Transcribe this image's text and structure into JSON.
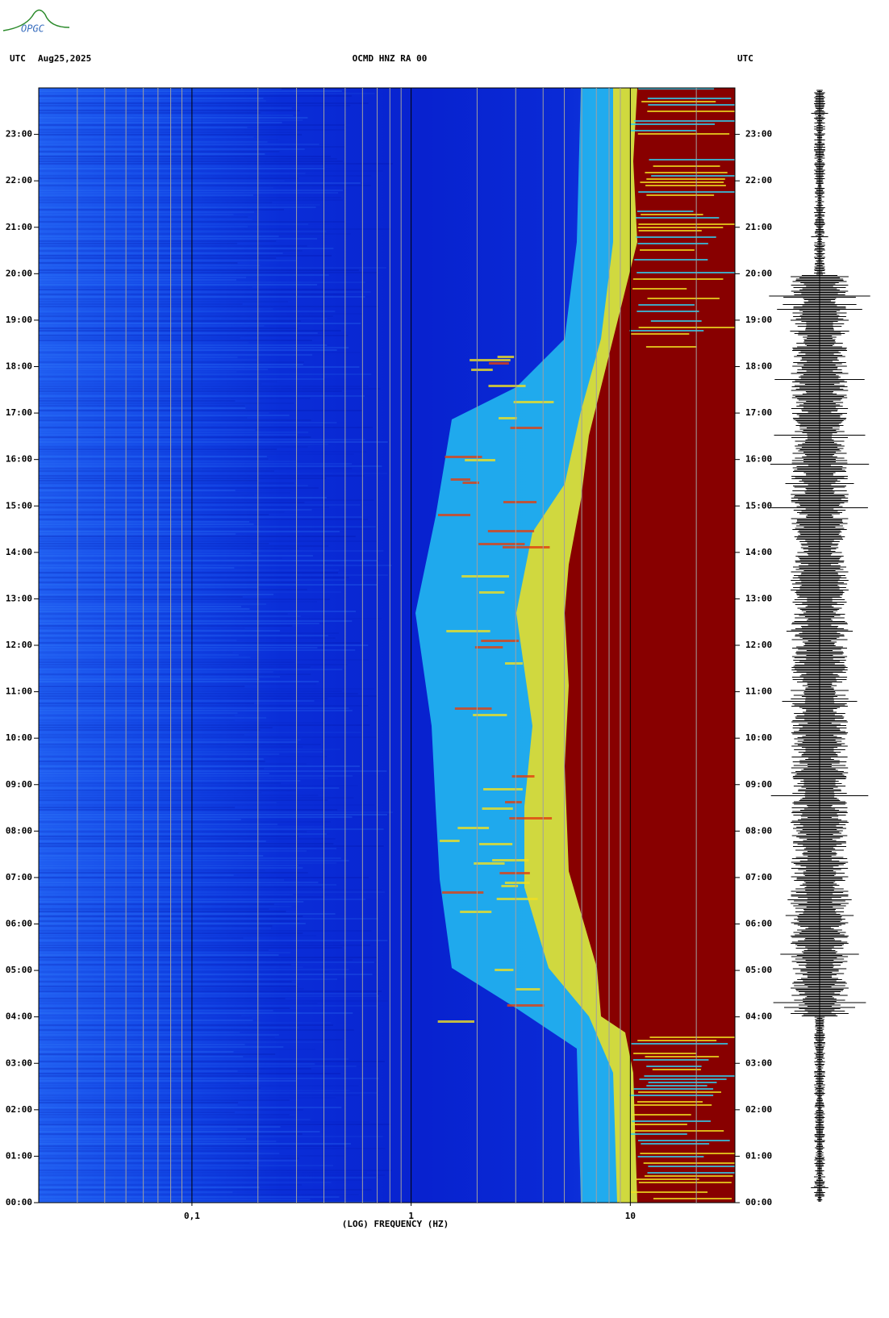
{
  "logo": "OPGC",
  "chart_data": {
    "type": "spectrogram",
    "title": "OCMD HNZ RA 00",
    "time_zone_left": "UTC",
    "date": "Aug25,2025",
    "time_zone_right": "UTC",
    "x_label": "(LOG) FREQUENCY (HZ)",
    "x_scale": "log",
    "xlim": [
      0.02,
      30
    ],
    "xticks": [
      {
        "value": 0.1,
        "label": "0,1"
      },
      1,
      10
    ],
    "x_grid": [
      0.03,
      0.04,
      0.05,
      0.06,
      0.07,
      0.08,
      0.09,
      0.2,
      0.3,
      0.4,
      0.5,
      0.6,
      0.7,
      0.8,
      0.9,
      2,
      3,
      4,
      5,
      6,
      7,
      8,
      9,
      20
    ],
    "ylim": [
      0,
      24
    ],
    "yticks": [
      {
        "value": 0,
        "label": "00:00"
      },
      {
        "value": 1,
        "label": "01:00"
      },
      {
        "value": 2,
        "label": "02:00"
      },
      {
        "value": 3,
        "label": "03:00"
      },
      {
        "value": 4,
        "label": "04:00"
      },
      {
        "value": 5,
        "label": "05:00"
      },
      {
        "value": 6,
        "label": "06:00"
      },
      {
        "value": 7,
        "label": "07:00"
      },
      {
        "value": 8,
        "label": "08:00"
      },
      {
        "value": 9,
        "label": "09:00"
      },
      {
        "value": 10,
        "label": "10:00"
      },
      {
        "value": 11,
        "label": "11:00"
      },
      {
        "value": 12,
        "label": "12:00"
      },
      {
        "value": 13,
        "label": "13:00"
      },
      {
        "value": 14,
        "label": "14:00"
      },
      {
        "value": 15,
        "label": "15:00"
      },
      {
        "value": 16,
        "label": "16:00"
      },
      {
        "value": 17,
        "label": "17:00"
      },
      {
        "value": 18,
        "label": "18:00"
      },
      {
        "value": 19,
        "label": "19:00"
      },
      {
        "value": 20,
        "label": "20:00"
      },
      {
        "value": 21,
        "label": "21:00"
      },
      {
        "value": 22,
        "label": "22:00"
      },
      {
        "value": 23,
        "label": "23:00"
      }
    ]
  }
}
